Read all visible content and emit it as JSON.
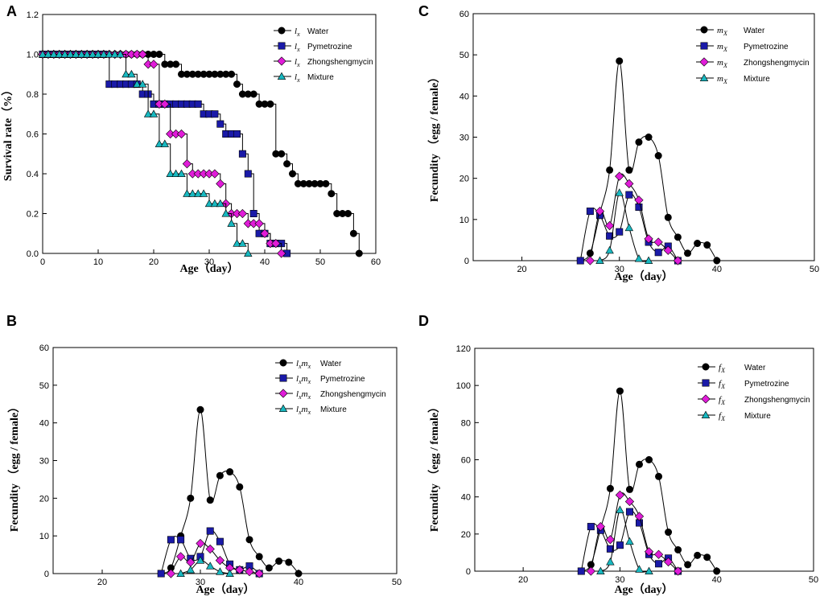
{
  "chart_data": [
    {
      "panel": "A",
      "type": "line",
      "step": true,
      "xlabel": "Age（day）",
      "ylabel": "Survival rate（%）",
      "xlim": [
        0,
        60
      ],
      "ylim": [
        0,
        1.2
      ],
      "xticks": [
        0,
        10,
        20,
        30,
        40,
        50,
        60
      ],
      "yticks": [
        0.0,
        0.2,
        0.4,
        0.6,
        0.8,
        1.0,
        1.2
      ],
      "ytick_labels": [
        "0.0",
        "0.2",
        "0.4",
        "0.6",
        "0.8",
        "1.0",
        "1.2"
      ],
      "legend": {
        "position": "top-right",
        "symbol": "l",
        "subscript": "x"
      },
      "series": [
        {
          "name": "Water",
          "marker": "circle",
          "color": "#000000",
          "x": [
            0,
            1,
            2,
            3,
            4,
            5,
            6,
            7,
            8,
            9,
            10,
            11,
            12,
            13,
            14,
            15,
            16,
            17,
            18,
            19,
            20,
            21,
            22,
            23,
            24,
            25,
            26,
            27,
            28,
            29,
            30,
            31,
            32,
            33,
            34,
            35,
            36,
            37,
            38,
            39,
            40,
            41,
            42,
            43,
            44,
            45,
            46,
            47,
            48,
            49,
            50,
            51,
            52,
            53,
            54,
            55,
            56,
            57
          ],
          "y": [
            1,
            1,
            1,
            1,
            1,
            1,
            1,
            1,
            1,
            1,
            1,
            1,
            1,
            1,
            1,
            1,
            1,
            1,
            1,
            1,
            1,
            1,
            0.95,
            0.95,
            0.95,
            0.9,
            0.9,
            0.9,
            0.9,
            0.9,
            0.9,
            0.9,
            0.9,
            0.9,
            0.9,
            0.85,
            0.8,
            0.8,
            0.8,
            0.75,
            0.75,
            0.75,
            0.5,
            0.5,
            0.45,
            0.4,
            0.35,
            0.35,
            0.35,
            0.35,
            0.35,
            0.35,
            0.3,
            0.2,
            0.2,
            0.2,
            0.1,
            0
          ]
        },
        {
          "name": "Pymetrozine",
          "marker": "square",
          "color": "#1a1aa8",
          "x": [
            0,
            1,
            2,
            3,
            4,
            5,
            6,
            7,
            8,
            9,
            10,
            11,
            12,
            13,
            14,
            15,
            16,
            17,
            18,
            19,
            20,
            21,
            22,
            23,
            24,
            25,
            26,
            27,
            28,
            29,
            30,
            31,
            32,
            33,
            34,
            35,
            36,
            37,
            38,
            39,
            40,
            41,
            42,
            43,
            44
          ],
          "y": [
            1,
            1,
            1,
            1,
            1,
            1,
            1,
            1,
            1,
            1,
            1,
            1,
            0.85,
            0.85,
            0.85,
            0.85,
            0.85,
            0.85,
            0.8,
            0.8,
            0.75,
            0.75,
            0.75,
            0.75,
            0.75,
            0.75,
            0.75,
            0.75,
            0.75,
            0.7,
            0.7,
            0.7,
            0.65,
            0.6,
            0.6,
            0.6,
            0.5,
            0.4,
            0.2,
            0.1,
            0.1,
            0.05,
            0.05,
            0.05,
            0
          ]
        },
        {
          "name": "Zhongshengmycin",
          "marker": "diamond",
          "color": "#e01cd8",
          "x": [
            0,
            1,
            2,
            3,
            4,
            5,
            6,
            7,
            8,
            9,
            10,
            11,
            12,
            13,
            14,
            15,
            16,
            17,
            18,
            19,
            20,
            21,
            22,
            23,
            24,
            25,
            26,
            27,
            28,
            29,
            30,
            31,
            32,
            33,
            34,
            35,
            36,
            37,
            38,
            39,
            40,
            41,
            42,
            43
          ],
          "y": [
            1,
            1,
            1,
            1,
            1,
            1,
            1,
            1,
            1,
            1,
            1,
            1,
            1,
            1,
            1,
            1,
            1,
            1,
            1,
            0.95,
            0.95,
            0.75,
            0.75,
            0.6,
            0.6,
            0.6,
            0.45,
            0.4,
            0.4,
            0.4,
            0.4,
            0.4,
            0.35,
            0.25,
            0.2,
            0.2,
            0.2,
            0.15,
            0.15,
            0.15,
            0.1,
            0.05,
            0.05,
            0
          ]
        },
        {
          "name": "Mixture",
          "marker": "triangle",
          "color": "#18b8c0",
          "x": [
            0,
            1,
            2,
            3,
            4,
            5,
            6,
            7,
            8,
            9,
            10,
            11,
            12,
            13,
            14,
            15,
            16,
            17,
            18,
            19,
            20,
            21,
            22,
            23,
            24,
            25,
            26,
            27,
            28,
            29,
            30,
            31,
            32,
            33,
            34,
            35,
            36,
            37
          ],
          "y": [
            1,
            1,
            1,
            1,
            1,
            1,
            1,
            1,
            1,
            1,
            1,
            1,
            1,
            1,
            1,
            0.9,
            0.9,
            0.85,
            0.85,
            0.7,
            0.7,
            0.55,
            0.55,
            0.4,
            0.4,
            0.4,
            0.3,
            0.3,
            0.3,
            0.3,
            0.25,
            0.25,
            0.25,
            0.2,
            0.15,
            0.05,
            0.05,
            0
          ]
        }
      ]
    },
    {
      "panel": "B",
      "type": "line",
      "step": false,
      "xlabel": "Age（day）",
      "ylabel": "Fecundity （egg / female）",
      "xlim": [
        15,
        50
      ],
      "ylim": [
        0,
        60
      ],
      "xticks": [
        20,
        30,
        40,
        50
      ],
      "yticks": [
        0,
        10,
        20,
        30,
        40,
        50,
        60
      ],
      "legend": {
        "position": "top-right",
        "symbol": "l",
        "subscript": "x",
        "symbol2": "m",
        "subscript2": "x"
      },
      "series": [
        {
          "name": "Water",
          "marker": "circle",
          "color": "#000000",
          "x": [
            26,
            27,
            28,
            29,
            30,
            31,
            32,
            33,
            34,
            35,
            36,
            37,
            38,
            39,
            40
          ],
          "y": [
            0,
            1.5,
            10,
            20,
            43.5,
            19.5,
            26,
            27,
            23,
            9,
            4.5,
            1.5,
            3.3,
            3,
            0
          ]
        },
        {
          "name": "Pymetrozine",
          "marker": "square",
          "color": "#1a1aa8",
          "x": [
            26,
            27,
            28,
            29,
            30,
            31,
            32,
            33,
            34,
            35,
            36
          ],
          "y": [
            0,
            9,
            9,
            4,
            4.5,
            11.3,
            8.5,
            2.5,
            1,
            2,
            0
          ]
        },
        {
          "name": "Zhongshengmycin",
          "marker": "diamond",
          "color": "#e01cd8",
          "x": [
            27,
            28,
            29,
            30,
            31,
            32,
            33,
            34,
            35,
            36
          ],
          "y": [
            0,
            4.5,
            3,
            8,
            6.5,
            3.5,
            1.5,
            1,
            0.5,
            0
          ]
        },
        {
          "name": "Mixture",
          "marker": "triangle",
          "color": "#18b8c0",
          "x": [
            28,
            29,
            30,
            31,
            32,
            33
          ],
          "y": [
            0,
            1,
            3.5,
            2,
            0.5,
            0
          ]
        }
      ]
    },
    {
      "panel": "C",
      "type": "line",
      "step": false,
      "xlabel": "Age（day）",
      "ylabel": "Fecundity （egg / female）",
      "xlim": [
        15,
        50
      ],
      "ylim": [
        0,
        60
      ],
      "xticks": [
        20,
        30,
        40,
        50
      ],
      "yticks": [
        0,
        10,
        20,
        30,
        40,
        50,
        60
      ],
      "legend": {
        "position": "top-right",
        "symbol": "m",
        "subscript": "X"
      },
      "series": [
        {
          "name": "Water",
          "marker": "circle",
          "color": "#000000",
          "x": [
            26,
            27,
            28,
            29,
            30,
            31,
            32,
            33,
            34,
            35,
            36,
            37,
            38,
            39,
            40
          ],
          "y": [
            0,
            1.8,
            11.5,
            22,
            48.5,
            22,
            28.8,
            30,
            25.5,
            10.5,
            5.7,
            1.8,
            4.2,
            3.8,
            0
          ]
        },
        {
          "name": "Pymetrozine",
          "marker": "square",
          "color": "#1a1aa8",
          "x": [
            26,
            27,
            28,
            29,
            30,
            31,
            32,
            33,
            34,
            35,
            36
          ],
          "y": [
            0,
            12,
            11,
            6,
            7,
            16,
            13,
            4.5,
            2,
            3.5,
            0
          ]
        },
        {
          "name": "Zhongshengmycin",
          "marker": "diamond",
          "color": "#e01cd8",
          "x": [
            27,
            28,
            29,
            30,
            31,
            32,
            33,
            34,
            35,
            36
          ],
          "y": [
            0,
            12,
            8.5,
            20.5,
            18.7,
            14.7,
            5.3,
            4.5,
            2.5,
            0
          ]
        },
        {
          "name": "Mixture",
          "marker": "triangle",
          "color": "#18b8c0",
          "x": [
            28,
            29,
            30,
            31,
            32,
            33
          ],
          "y": [
            0,
            2.5,
            16.5,
            8,
            0.5,
            0
          ]
        }
      ]
    },
    {
      "panel": "D",
      "type": "line",
      "step": false,
      "xlabel": "Age（day）",
      "ylabel": "Fecundity （egg / female）",
      "xlim": [
        15,
        50
      ],
      "ylim": [
        0,
        120
      ],
      "xticks": [
        20,
        30,
        40,
        50
      ],
      "yticks": [
        0,
        20,
        40,
        60,
        80,
        100,
        120
      ],
      "legend": {
        "position": "top-right",
        "symbol": "f",
        "subscript": "X"
      },
      "series": [
        {
          "name": "Water",
          "marker": "circle",
          "color": "#000000",
          "x": [
            26,
            27,
            28,
            29,
            30,
            31,
            32,
            33,
            34,
            35,
            36,
            37,
            38,
            39,
            40
          ],
          "y": [
            0,
            3.5,
            23,
            44.5,
            97,
            44,
            57.5,
            60,
            51,
            21,
            11.5,
            3.5,
            8.5,
            7.5,
            0
          ]
        },
        {
          "name": "Pymetrozine",
          "marker": "square",
          "color": "#1a1aa8",
          "x": [
            26,
            27,
            28,
            29,
            30,
            31,
            32,
            33,
            34,
            35,
            36
          ],
          "y": [
            0,
            24,
            22,
            12,
            14,
            32,
            26,
            9,
            4,
            7,
            0
          ]
        },
        {
          "name": "Zhongshengmycin",
          "marker": "diamond",
          "color": "#e01cd8",
          "x": [
            27,
            28,
            29,
            30,
            31,
            32,
            33,
            34,
            35,
            36
          ],
          "y": [
            0,
            24,
            17,
            41,
            37.5,
            29.5,
            10.5,
            9,
            5,
            0
          ]
        },
        {
          "name": "Mixture",
          "marker": "triangle",
          "color": "#18b8c0",
          "x": [
            28,
            29,
            30,
            31,
            32,
            33
          ],
          "y": [
            0,
            5,
            33,
            16,
            1,
            0
          ]
        }
      ]
    }
  ]
}
